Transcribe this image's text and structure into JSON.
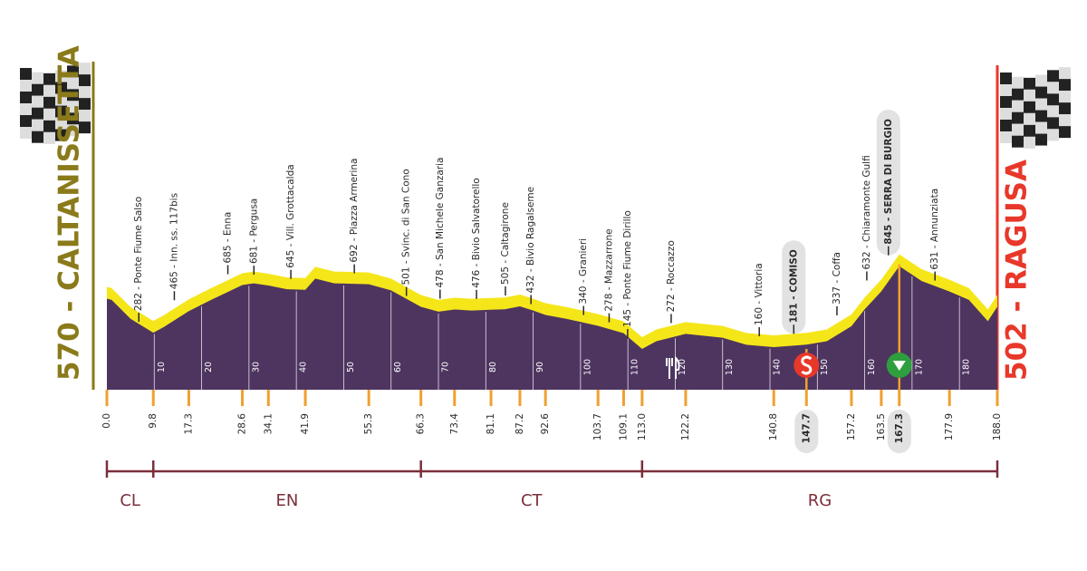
{
  "start": "570 - CALTANISSETTA",
  "finish": "502 - RAGUSA",
  "chart_data": {
    "type": "area",
    "color": "#4e3560",
    "band_color": "#f5e61a",
    "xlim": [
      0,
      188
    ],
    "ylim": [
      -200,
      850
    ],
    "xticks": [
      10,
      20,
      30,
      40,
      50,
      60,
      70,
      80,
      90,
      100,
      110,
      120,
      130,
      140,
      150,
      160,
      170,
      180
    ],
    "x": [
      0,
      1,
      5,
      9.8,
      12,
      17.3,
      22,
      28.6,
      31,
      34.1,
      38,
      41.9,
      44,
      48,
      55.3,
      60,
      66.3,
      70,
      73.4,
      77,
      81.1,
      84,
      87.2,
      90,
      92.6,
      97,
      103.7,
      109.1,
      113,
      116,
      122.2,
      130,
      135,
      140.8,
      147.7,
      152,
      157.2,
      160,
      163.5,
      167.3,
      172,
      177.9,
      182,
      186,
      188
    ],
    "values": [
      570,
      560,
      400,
      282,
      330,
      465,
      560,
      685,
      700,
      681,
      650,
      645,
      740,
      700,
      692,
      640,
      501,
      460,
      478,
      470,
      476,
      480,
      505,
      470,
      432,
      400,
      340,
      278,
      145,
      210,
      272,
      240,
      180,
      160,
      181,
      210,
      337,
      480,
      632,
      845,
      720,
      631,
      560,
      380,
      502
    ],
    "waypoints": [
      {
        "km": {
          "value": 0,
          "label": "0.0"
        }
      },
      {
        "km": 9.8,
        "label": "282 - Ponte Fiume Salso"
      },
      {
        "km": 17.3,
        "label": "465 - Inn. ss. 117bis"
      },
      {
        "km": 28.6,
        "label": "685 - Enna"
      },
      {
        "km": 34.1,
        "label": "681 - Pergusa"
      },
      {
        "km": 41.9,
        "label": "645 - Vill. Grottacalda"
      },
      {
        "km": 55.3,
        "label": "692 - Piazza Armerina"
      },
      {
        "km": 66.3,
        "label": "501 - Svinc. di San Cono"
      },
      {
        "km": 73.4,
        "label": "478 - San Michele Ganzaria"
      },
      {
        "km": 81.1,
        "label": "476 - Bivio Salvatorello"
      },
      {
        "km": 87.2,
        "label": "505 - Caltagirone"
      },
      {
        "km": 92.6,
        "label": "432 - Bivio Ragalseme"
      },
      {
        "km": 103.7,
        "label": "340 - Granieri"
      },
      {
        "km": 109.1,
        "label": "278 - Mazzarrone"
      },
      {
        "km": {
          "value": 113,
          "label": "113.0"
        },
        "label": "145 - Ponte Fiume Dirillo"
      },
      {
        "km": 122.2,
        "label": "272 - Roccazzo"
      },
      {
        "km": 140.8,
        "label": "160 - Vittoria"
      },
      {
        "km": 147.7,
        "label": "181 - COMISO",
        "highlight": true,
        "marker": "sprint"
      },
      {
        "km": 157.2,
        "label": "337 - Coffa"
      },
      {
        "km": 163.5,
        "label": "632 - Chiaramonte Gulfi"
      },
      {
        "km": 167.3,
        "label": "845 - SERRA DI BURGIO",
        "highlight": true,
        "marker": "kom"
      },
      {
        "km": 177.9,
        "label": "631 - Annunziata"
      },
      {
        "km": {
          "value": 188,
          "label": "188.0"
        }
      }
    ],
    "provinces": [
      {
        "name": "CL",
        "from_km": 0,
        "to_km": 9.8
      },
      {
        "name": "EN",
        "from_km": 9.8,
        "to_km": 66.3
      },
      {
        "name": "CT",
        "from_km": 66.3,
        "to_km": 113
      },
      {
        "name": "RG",
        "from_km": 113,
        "to_km": 188
      }
    ]
  }
}
